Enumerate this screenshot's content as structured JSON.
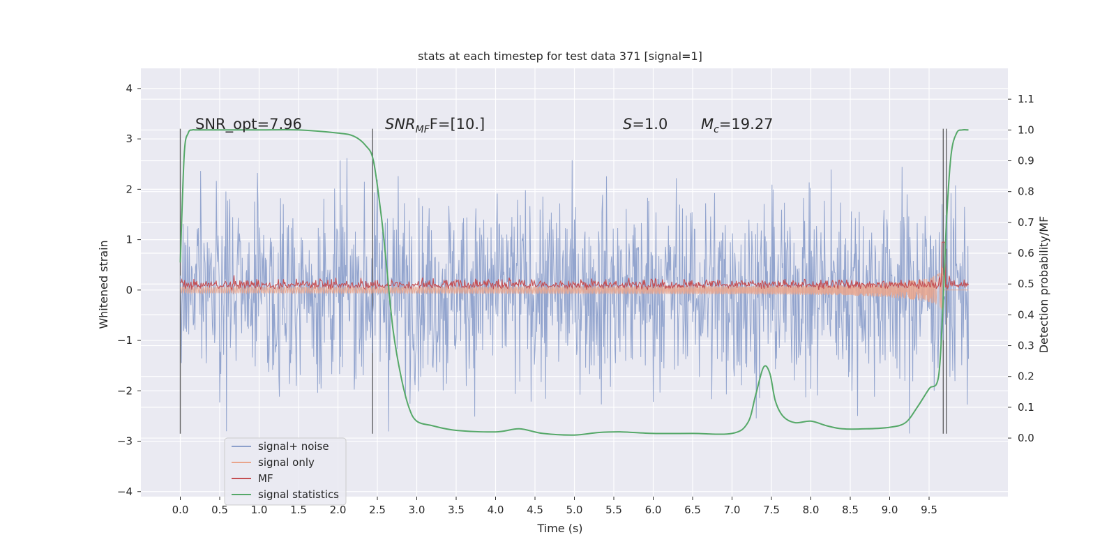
{
  "chart_data": {
    "type": "line",
    "title": "stats at each timestep for test data 371 [signal=1]",
    "xlabel": "Time (s)",
    "ylabel": "Whitened strain",
    "y2label": "Detection probability/MF",
    "xlim": [
      -0.5,
      10.5
    ],
    "ylim": [
      -4.1,
      4.4
    ],
    "y2lim": [
      -0.19,
      1.2
    ],
    "xticks": [
      0.0,
      0.5,
      1.0,
      1.5,
      2.0,
      2.5,
      3.0,
      3.5,
      4.0,
      4.5,
      5.0,
      5.5,
      6.0,
      6.5,
      7.0,
      7.5,
      8.0,
      8.5,
      9.0,
      9.5
    ],
    "xtick_labels": [
      "0.0",
      "0.5",
      "1.0",
      "1.5",
      "2.0",
      "2.5",
      "3.0",
      "3.5",
      "4.0",
      "4.5",
      "5.0",
      "5.5",
      "6.0",
      "6.5",
      "7.0",
      "7.5",
      "8.0",
      "8.5",
      "9.0",
      "9.5"
    ],
    "yticks": [
      4,
      3,
      2,
      1,
      0,
      -1,
      -2,
      -3,
      -4
    ],
    "ytick_labels": [
      "4",
      "3",
      "2",
      "1",
      "0",
      "−1",
      "−2",
      "−3",
      "−4"
    ],
    "y2ticks": [
      1.1,
      1.0,
      0.9,
      0.8,
      0.7,
      0.6,
      0.5,
      0.4,
      0.3,
      0.2,
      0.1,
      0.0
    ],
    "y2tick_labels": [
      "1.1",
      "1.0",
      "0.9",
      "0.8",
      "0.7",
      "0.6",
      "0.5",
      "0.4",
      "0.3",
      "0.2",
      "0.1",
      "0.0"
    ],
    "grid": true,
    "legend_position": "bottom-left",
    "annotations": {
      "snr_opt": "SNR_opt=7.96",
      "snr_mf_base": "SNR",
      "snr_mf_sub": "MF",
      "snr_mf_rest": "F=[10.]",
      "s_base": "S",
      "s_rest": "=1.0",
      "mc_base": "M",
      "mc_sub": "c",
      "mc_rest": "=19.27"
    },
    "vertical_lines_x": [
      0.0,
      2.44,
      9.68,
      9.72
    ],
    "vertical_lines_yrange": [
      -2.85,
      3.2
    ],
    "series": [
      {
        "name": "signal+ noise",
        "color": "#8da0cb",
        "noise_envelope": 1.4,
        "peak_envelope": 3.1,
        "min_envelope": -3.1,
        "x_range": [
          0.0,
          10.0
        ]
      },
      {
        "name": "signal only",
        "color": "#e9a58c",
        "x_range": [
          0.0,
          10.0
        ],
        "chirp_peak_time": 9.68,
        "chirp_max_amp": 1.1
      },
      {
        "name": "MF",
        "color": "#c44e52",
        "baseline": 0.1,
        "spread": 0.15,
        "x_range": [
          0.0,
          10.0
        ]
      },
      {
        "name": "signal statistics",
        "color": "#55a868",
        "x": [
          0.0,
          0.05,
          0.1,
          0.15,
          0.2,
          0.3,
          0.5,
          1.0,
          1.5,
          2.0,
          2.2,
          2.35,
          2.45,
          2.55,
          2.62,
          2.7,
          2.8,
          2.9,
          3.0,
          3.2,
          3.5,
          4.0,
          4.3,
          4.6,
          5.0,
          5.3,
          5.6,
          6.0,
          6.5,
          7.0,
          7.2,
          7.3,
          7.4,
          7.48,
          7.55,
          7.65,
          7.8,
          8.0,
          8.2,
          8.4,
          8.7,
          9.0,
          9.2,
          9.35,
          9.5,
          9.62,
          9.68,
          9.72,
          9.78,
          9.85,
          9.92,
          10.0
        ],
        "y": [
          0.57,
          0.92,
          0.99,
          1.0,
          1.0,
          1.0,
          1.0,
          1.0,
          1.0,
          0.99,
          0.98,
          0.95,
          0.9,
          0.72,
          0.55,
          0.35,
          0.2,
          0.1,
          0.055,
          0.04,
          0.025,
          0.02,
          0.03,
          0.015,
          0.01,
          0.018,
          0.02,
          0.015,
          0.015,
          0.015,
          0.05,
          0.14,
          0.23,
          0.21,
          0.12,
          0.07,
          0.05,
          0.055,
          0.04,
          0.03,
          0.03,
          0.035,
          0.05,
          0.1,
          0.16,
          0.2,
          0.45,
          0.7,
          0.92,
          0.99,
          1.0,
          1.0
        ]
      }
    ]
  }
}
